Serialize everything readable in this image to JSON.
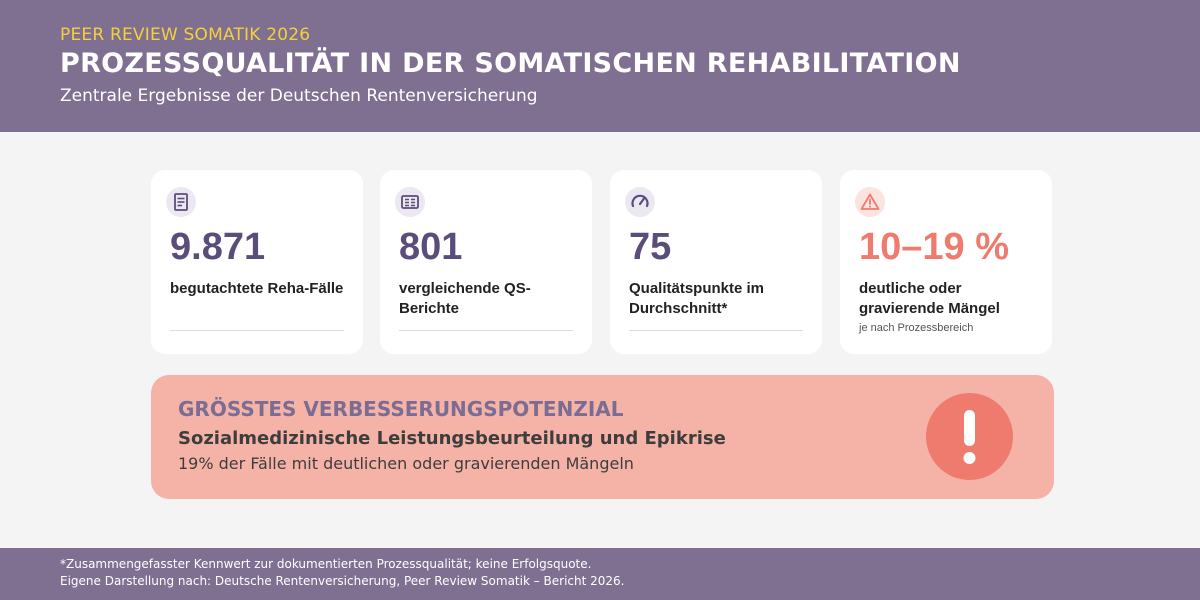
{
  "header": {
    "kicker": "PEER REVIEW SOMATIK 2026",
    "title": "PROZESSQUALITÄT IN DER SOMATISCHEN REHABILITATION",
    "subtitle": "Zentrale Ergebnisse der Deutschen Rentenversicherung"
  },
  "cards": [
    {
      "icon": "document-icon",
      "value": "9.871",
      "label": "begutachtete Reha-Fälle"
    },
    {
      "icon": "report-list-icon",
      "value": "801",
      "label": "vergleichende QS-Berichte"
    },
    {
      "icon": "gauge-icon",
      "value": "75",
      "label": "Qualitätspunkte im Durchschnitt*"
    },
    {
      "icon": "warning-triangle-icon",
      "value": "10–19 %",
      "label": "deutliche oder gravierende Mängel",
      "note": "je nach Prozessbereich"
    }
  ],
  "banner": {
    "kicker": "GRÖSSTES VERBESSERUNGSPOTENZIAL",
    "title": "Sozialmedizinische Leistungsbeurteilung und Epikrise",
    "text": "19% der Fälle mit deutlichen oder gravierenden Mängeln",
    "icon": "exclamation-icon"
  },
  "footer": {
    "note": "*Zusammengefasster Kennwert zur dokumentierten Prozessqualität; keine Erfolgsquote.",
    "source": "Eigene Darstellung nach: Deutsche Rentenversicherung, Peer Review Somatik – Bericht 2026."
  },
  "colors": {
    "header_bg": "#7f7092",
    "kicker": "#f5cf3c",
    "value": "#5b4d7a",
    "accent": "#ef7b6e",
    "banner_bg": "#f4b3a6"
  }
}
